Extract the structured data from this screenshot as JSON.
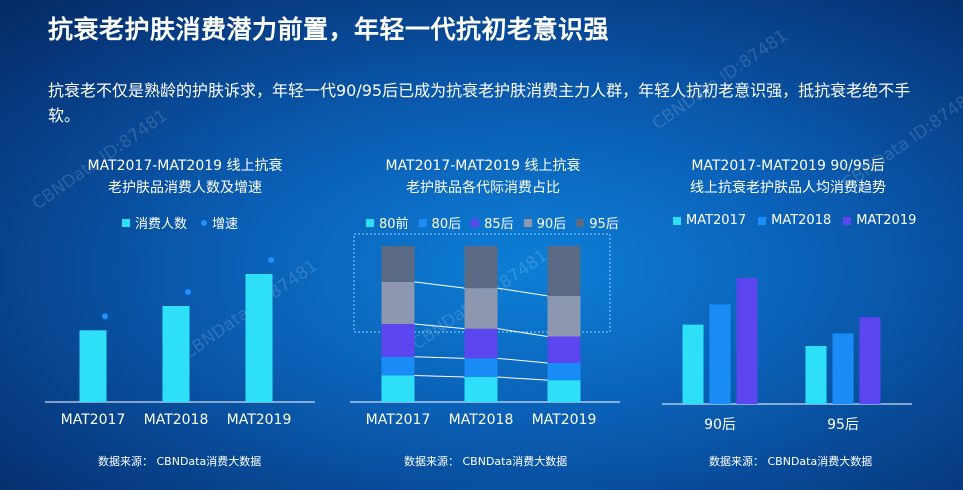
{
  "title": "抗衰老护肤消费潜力前置，年轻一代抗初老意识强",
  "subtitle": "抗衰老不仅是熟龄的护肤诉求，年轻一代90/95后已成为抗衰老护肤消费主力人群，年轻人抗初老意识强，抵抗衰老绝不手软。",
  "watermark": "CBNData ID:87481",
  "chart_data": [
    {
      "type": "bar",
      "title_line1": "MAT2017-MAT2019 线上抗衰",
      "title_line2": "老护肤品消费人数及增速",
      "legend": [
        "消费人数",
        "增速"
      ],
      "categories": [
        "MAT2017",
        "MAT2018",
        "MAT2019"
      ],
      "values": [
        0.56,
        0.75,
        1.0
      ],
      "colors": {
        "bar": "#2ee0f7",
        "growth": "#1e90ff"
      },
      "source": "数据来源： CBNData消费大数据"
    },
    {
      "type": "bar",
      "stacked": true,
      "title_line1": "MAT2017-MAT2019 线上抗衰",
      "title_line2": "老护肤品各代际消费占比",
      "categories": [
        "MAT2017",
        "MAT2018",
        "MAT2019"
      ],
      "series": [
        {
          "name": "80前",
          "color": "#2ee0f7",
          "values": [
            0.17,
            0.16,
            0.14
          ]
        },
        {
          "name": "80后",
          "color": "#1a8cf5",
          "values": [
            0.12,
            0.12,
            0.11
          ]
        },
        {
          "name": "85后",
          "color": "#5b46ef",
          "values": [
            0.21,
            0.19,
            0.17
          ]
        },
        {
          "name": "90后",
          "color": "#8d97b0",
          "values": [
            0.27,
            0.26,
            0.26
          ]
        },
        {
          "name": "95后",
          "color": "#5a6a84",
          "values": [
            0.23,
            0.27,
            0.32
          ]
        }
      ],
      "source": "数据来源： CBNData消费大数据"
    },
    {
      "type": "bar",
      "title_line1": "MAT2017-MAT2019 90/95后",
      "title_line2": "线上抗衰老护肤品人均消费趋势",
      "categories": [
        "90后",
        "95后"
      ],
      "series": [
        {
          "name": "MAT2017",
          "color": "#2ee0f7",
          "values": [
            0.63,
            0.46
          ]
        },
        {
          "name": "MAT2018",
          "color": "#1a8cf5",
          "values": [
            0.79,
            0.56
          ]
        },
        {
          "name": "MAT2019",
          "color": "#5b46ef",
          "values": [
            1.0,
            0.69
          ]
        }
      ],
      "source": "数据来源： CBNData消费大数据"
    }
  ]
}
